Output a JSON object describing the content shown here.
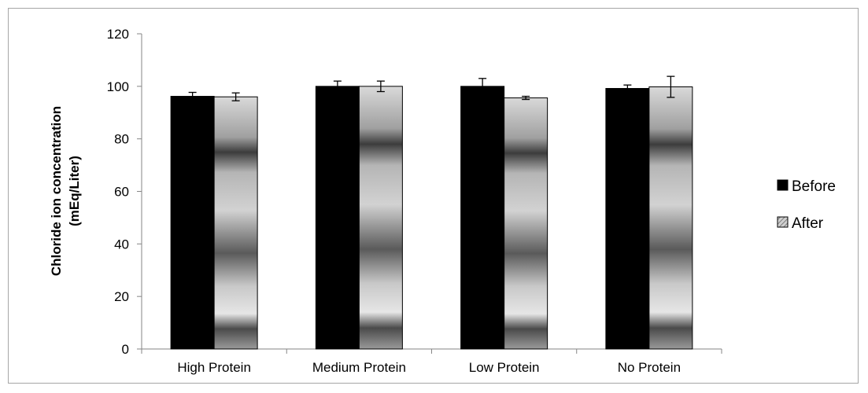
{
  "chart_data": {
    "type": "bar",
    "title": "",
    "xlabel": "",
    "ylabel_line1": "Chloride ion concentration",
    "ylabel_line2": "(mEq/Liter)",
    "ylim": [
      0,
      120
    ],
    "yticks": [
      0,
      20,
      40,
      60,
      80,
      100,
      120
    ],
    "grid": false,
    "legend_position": "right",
    "categories": [
      "High Protein",
      "Medium Protein",
      "Low Protein",
      "No Protein"
    ],
    "series": [
      {
        "name": "Before",
        "values": [
          96.2,
          100.0,
          100.0,
          99.2
        ],
        "errors": [
          1.5,
          2.0,
          3.0,
          1.3
        ],
        "color": "#000000",
        "pattern": "solid"
      },
      {
        "name": "After",
        "values": [
          96.0,
          100.0,
          95.6,
          99.8
        ],
        "errors": [
          1.5,
          2.0,
          0.6,
          4.0
        ],
        "color": "#c8c8c8",
        "pattern": "gradient"
      }
    ]
  }
}
